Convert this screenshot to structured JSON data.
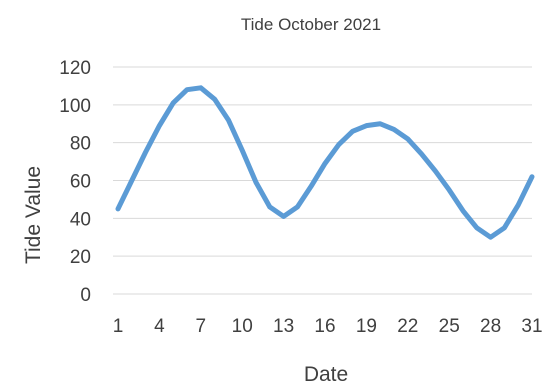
{
  "chart_data": {
    "type": "line",
    "title": "Tide October 2021",
    "xlabel": "Date",
    "ylabel": "Tide Value",
    "ylim": [
      0,
      120
    ],
    "grid": true,
    "legend": "none",
    "x": [
      1,
      2,
      3,
      4,
      5,
      6,
      7,
      8,
      9,
      10,
      11,
      12,
      13,
      14,
      15,
      16,
      17,
      18,
      19,
      20,
      21,
      22,
      23,
      24,
      25,
      26,
      27,
      28,
      29,
      30,
      31
    ],
    "x_ticks": [
      "1",
      "4",
      "7",
      "10",
      "13",
      "16",
      "19",
      "22",
      "25",
      "28",
      "31"
    ],
    "y_ticks": [
      "0",
      "20",
      "40",
      "60",
      "80",
      "100",
      "120"
    ],
    "series": [
      {
        "color": "#5b9bd5",
        "values": [
          45,
          60,
          75,
          89,
          101,
          108,
          109,
          103,
          92,
          76,
          59,
          46,
          41,
          46,
          57,
          69,
          79,
          86,
          89,
          90,
          87,
          82,
          74,
          65,
          55,
          44,
          35,
          30,
          35,
          47,
          62
        ]
      }
    ],
    "colors": {
      "grid": "#d9d9d9",
      "text": "#404040",
      "line": "#5b9bd5"
    }
  }
}
